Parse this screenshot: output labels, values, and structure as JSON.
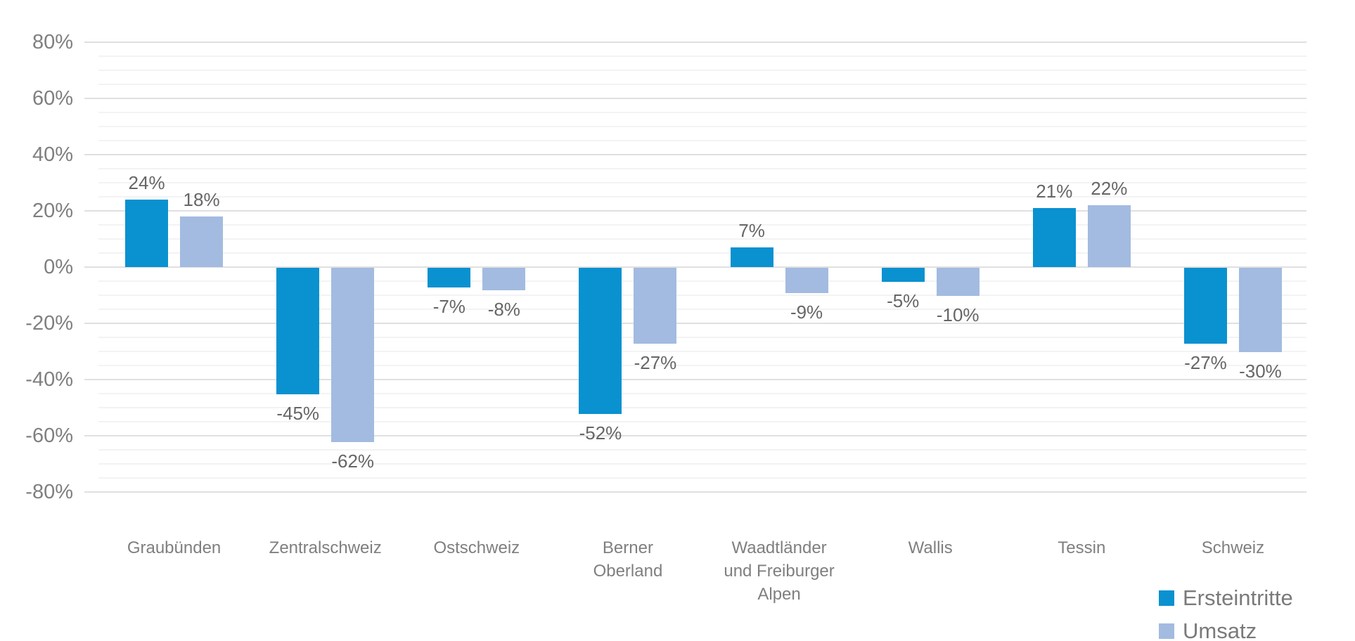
{
  "chart_data": {
    "type": "bar",
    "title": "",
    "xlabel": "",
    "ylabel": "",
    "categories": [
      "Graubünden",
      "Zentralschweiz",
      "Ostschweiz",
      "Berner\nOberland",
      "Waadtländer\nund Freiburger\nAlpen",
      "Wallis",
      "Tessin",
      "Schweiz"
    ],
    "series": [
      {
        "name": "Ersteintritte",
        "color": "#0A91D0",
        "values": [
          24,
          -45,
          -7,
          -52,
          7,
          -5,
          21,
          -27
        ]
      },
      {
        "name": "Umsatz",
        "color": "#A3BBE0",
        "values": [
          18,
          -62,
          -8,
          -27,
          -9,
          -10,
          22,
          -30
        ]
      }
    ],
    "value_label_suffix": "%",
    "y_axis": {
      "min": -80,
      "max": 80,
      "major_step": 20,
      "minor_step": 5,
      "tick_labels": [
        "80%",
        "60%",
        "40%",
        "20%",
        "0%",
        "-20%",
        "-40%",
        "-60%",
        "-80%"
      ]
    },
    "grid": true,
    "legend_position": "bottom-right",
    "colors": {
      "gridline_major": "#e0e0e0",
      "gridline_minor": "#f3f3f3",
      "axis_text": "#7f7f7f",
      "data_label_text": "#666666",
      "legend_text": "#7a7a7a"
    }
  }
}
